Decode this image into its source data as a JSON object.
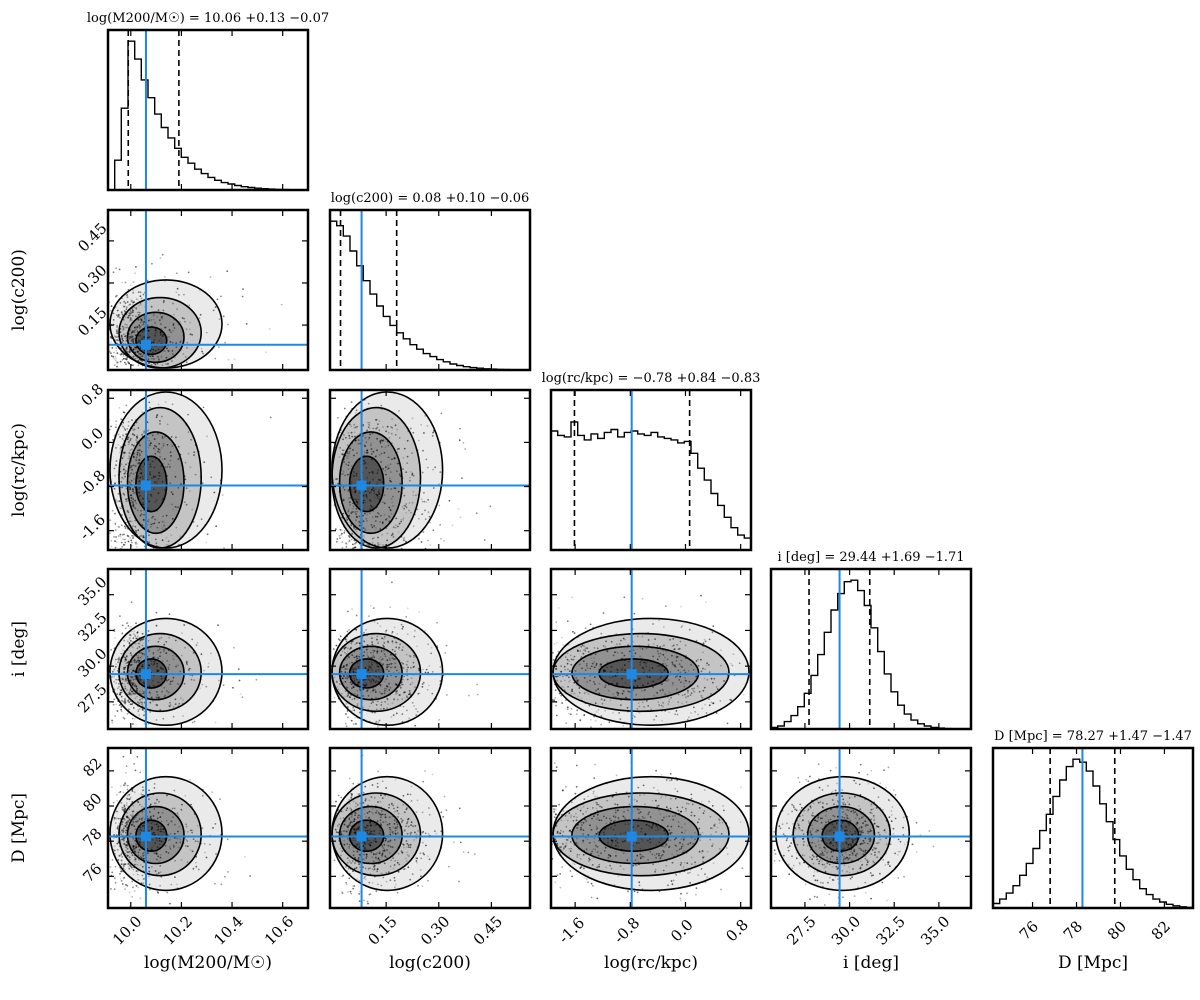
{
  "chart_data": {
    "type": "corner",
    "truth_color": "#1e88e5",
    "params": [
      {
        "key": "logM200",
        "label": "log(M200/M☉)",
        "title": "log(M200/M☉) = 10.06 +0.13 −0.07",
        "median": 10.06,
        "q16": 9.99,
        "q84": 10.19,
        "range": [
          9.91,
          10.7
        ],
        "ticks": [
          10.0,
          10.2,
          10.4,
          10.6
        ],
        "ticklabels": [
          "10.0",
          "10.2",
          "10.4",
          "10.6"
        ],
        "hist": [
          0.0,
          0.2,
          0.55,
          1.0,
          0.88,
          0.74,
          0.62,
          0.51,
          0.42,
          0.35,
          0.28,
          0.22,
          0.18,
          0.14,
          0.11,
          0.085,
          0.065,
          0.05,
          0.04,
          0.03,
          0.022,
          0.017,
          0.012,
          0.009,
          0.006,
          0.004,
          0.003,
          0.002,
          0.001,
          0.001
        ]
      },
      {
        "key": "logc200",
        "label": "log(c200)",
        "title": "log(c200) = 0.08 +0.10 −0.06",
        "median": 0.08,
        "q16": 0.02,
        "q84": 0.18,
        "range": [
          -0.01,
          0.56
        ],
        "ticks": [
          0.15,
          0.3,
          0.45
        ],
        "ticklabels": [
          "0.15",
          "0.30",
          "0.45"
        ],
        "hist": [
          1.0,
          0.97,
          0.9,
          0.8,
          0.7,
          0.6,
          0.51,
          0.43,
          0.36,
          0.3,
          0.25,
          0.21,
          0.17,
          0.14,
          0.11,
          0.09,
          0.07,
          0.055,
          0.04,
          0.03,
          0.022,
          0.016,
          0.012,
          0.008,
          0.006,
          0.004,
          0.003,
          0.002,
          0.001,
          0.001
        ]
      },
      {
        "key": "logrc",
        "label": "log(rc/kpc)",
        "title": "log(rc/kpc) = −0.78 +0.84 −0.83",
        "median": -0.78,
        "q16": -1.61,
        "q84": 0.06,
        "range": [
          -1.95,
          0.95
        ],
        "ticks": [
          -1.6,
          -0.8,
          0.0,
          0.8
        ],
        "ticklabels": [
          "-1.6",
          "-0.8",
          "0.0",
          "0.8"
        ],
        "hist": [
          0.8,
          0.77,
          0.76,
          0.86,
          0.77,
          0.74,
          0.78,
          0.75,
          0.79,
          0.81,
          0.76,
          0.79,
          0.8,
          0.78,
          0.77,
          0.79,
          0.76,
          0.75,
          0.74,
          0.72,
          0.73,
          0.65,
          0.55,
          0.47,
          0.38,
          0.3,
          0.22,
          0.15,
          0.1,
          0.08
        ]
      },
      {
        "key": "inc",
        "label": "i [deg]",
        "title": "i [deg] = 29.44 +1.69 −1.71",
        "median": 29.44,
        "q16": 27.73,
        "q84": 31.13,
        "range": [
          25.6,
          36.8
        ],
        "ticks": [
          27.5,
          30.0,
          32.5,
          35.0
        ],
        "ticklabels": [
          "27.5",
          "30.0",
          "32.5",
          "35.0"
        ],
        "hist": [
          0.01,
          0.02,
          0.05,
          0.09,
          0.15,
          0.24,
          0.36,
          0.5,
          0.65,
          0.8,
          0.91,
          0.99,
          1.0,
          0.93,
          0.83,
          0.68,
          0.52,
          0.37,
          0.25,
          0.16,
          0.1,
          0.06,
          0.035,
          0.02,
          0.01,
          0.006,
          0.003,
          0.001,
          0.0,
          0.0
        ]
      },
      {
        "key": "dist",
        "label": "D [Mpc]",
        "title": "D [Mpc] = 78.27 +1.47 −1.47",
        "median": 78.27,
        "q16": 76.8,
        "q84": 79.74,
        "range": [
          74.2,
          83.3
        ],
        "ticks": [
          76,
          78,
          80,
          82
        ],
        "ticklabels": [
          "76",
          "78",
          "80",
          "82"
        ],
        "hist": [
          0.03,
          0.06,
          0.1,
          0.15,
          0.22,
          0.3,
          0.4,
          0.52,
          0.63,
          0.75,
          0.86,
          0.95,
          1.0,
          0.98,
          0.92,
          0.82,
          0.7,
          0.58,
          0.46,
          0.35,
          0.26,
          0.19,
          0.13,
          0.09,
          0.06,
          0.04,
          0.025,
          0.015,
          0.008,
          0.004
        ]
      }
    ]
  }
}
